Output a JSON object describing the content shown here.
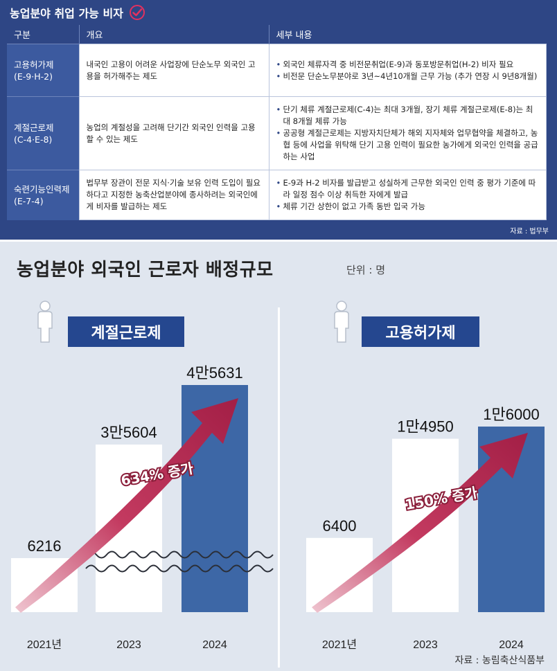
{
  "visa_table": {
    "title": "농업분야 취업 가능 비자",
    "headers": [
      "구분",
      "개요",
      "세부 내용"
    ],
    "rows": [
      {
        "category": "고용허가제",
        "code": "(E-9·H-2)",
        "overview": "내국인 고용이 어려운 사업장에 단순노무 외국인 고용을 허가해주는 제도",
        "details": [
          "외국인 체류자격 중 비전문취업(E-9)과 동포방문취업(H-2) 비자 필요",
          "비전문 단순노무분야로 3년~4년10개월 근무 가능 (추가 연장 시 9년8개월)"
        ]
      },
      {
        "category": "계절근로제",
        "code": "(C-4·E-8)",
        "overview": "농업의 계절성을 고려해 단기간 외국인 인력을 고용할 수 있는 제도",
        "details": [
          "단기 체류 계절근로제(C-4)는 최대 3개월, 장기 체류 계절근로제(E-8)는 최대 8개월 체류 가능",
          "공공형 계절근로제는 지방자치단체가 해외 지자체와 업무협약을 체결하고, 농협 등에 사업을 위탁해 단기 고용 인력이 필요한 농가에게 외국인 인력을 공급하는 사업"
        ]
      },
      {
        "category": "숙련기능인력제",
        "code": "(E-7-4)",
        "overview": "법무부 장관이 전문 지식·기술 보유 인력 도입이 필요하다고 지정한 농축산업분야에 종사하려는 외국인에게 비자를 발급하는 제도",
        "details": [
          "E-9과 H-2 비자를 발급받고 성실하게 근무한 외국인 인력 중 평가 기준에 따라 일정 점수 이상 취득한 자에게 발급",
          "체류 기간 상한이 없고 가족 동반 입국 가능"
        ]
      }
    ],
    "source": "자료 : 법무부"
  },
  "chart_data": [
    {
      "type": "bar",
      "title": "농업분야 외국인 근로자 배정규모",
      "unit": "단위 : 명",
      "name": "계절근로제",
      "categories": [
        "2021년",
        "2023",
        "2024"
      ],
      "values": [
        6216,
        35604,
        45631
      ],
      "value_labels": [
        "6216",
        "3만5604",
        "4만5631"
      ],
      "annotation": "634% 증가",
      "axis_break": true,
      "colors": [
        "#ffffff",
        "#ffffff",
        "#3d67a6"
      ]
    },
    {
      "type": "bar",
      "name": "고용허가제",
      "categories": [
        "2021년",
        "2023",
        "2024"
      ],
      "values": [
        6400,
        14950,
        16000
      ],
      "value_labels": [
        "6400",
        "1만4950",
        "1만6000"
      ],
      "annotation": "150% 증가",
      "colors": [
        "#ffffff",
        "#ffffff",
        "#3d67a6"
      ]
    }
  ],
  "chart_title": "농업분야 외국인 근로자 배정규모",
  "chart_unit": "단위 : 명",
  "chart_source": "자료 : 농림축산식품부",
  "colors": {
    "navy": "#2e4685",
    "bar_blue": "#3d67a6",
    "arrow": "#b3264f",
    "badge": "#25478f"
  }
}
